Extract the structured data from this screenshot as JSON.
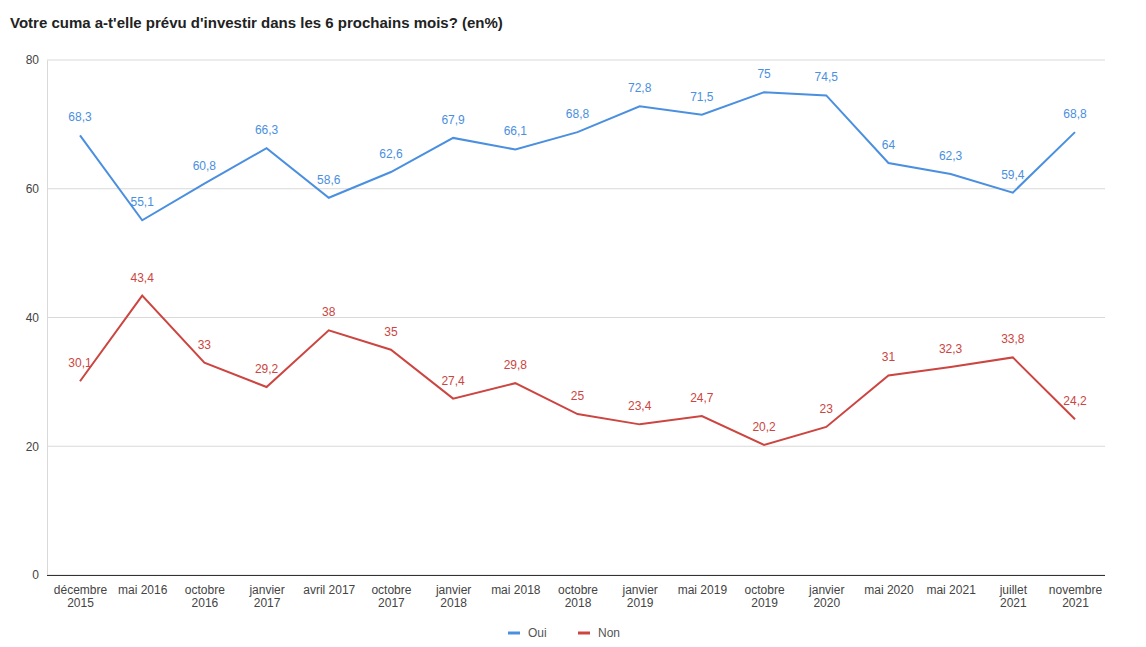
{
  "chart_data": {
    "type": "line",
    "title": "Votre cuma a-t'elle prévu d'investir dans les 6 prochains mois? (en%)",
    "categories": [
      "décembre 2015",
      "mai 2016",
      "octobre 2016",
      "janvier 2017",
      "avril 2017",
      "octobre 2017",
      "janvier 2018",
      "mai 2018",
      "octobre 2018",
      "janvier 2019",
      "mai 2019",
      "octobre 2019",
      "janvier 2020",
      "mai 2020",
      "mai 2021",
      "juillet 2021",
      "novembre 2021"
    ],
    "series": [
      {
        "name": "Oui",
        "color": "#4a8fe0",
        "values": [
          68.3,
          55.1,
          60.8,
          66.3,
          58.6,
          62.6,
          67.9,
          66.1,
          68.8,
          72.8,
          71.5,
          75,
          74.5,
          64,
          62.3,
          59.4,
          68.8
        ],
        "value_labels": [
          "68,3",
          "55,1",
          "60,8",
          "66,3",
          "58,6",
          "62,6",
          "67,9",
          "66,1",
          "68,8",
          "72,8",
          "71,5",
          "75",
          "74,5",
          "64",
          "62,3",
          "59,4",
          "68,8"
        ]
      },
      {
        "name": "Non",
        "color": "#cc4541",
        "values": [
          30.1,
          43.4,
          33,
          29.2,
          38,
          35,
          27.4,
          29.8,
          25,
          23.4,
          24.7,
          20.2,
          23,
          31,
          32.3,
          33.8,
          24.2
        ],
        "value_labels": [
          "30,1",
          "43,4",
          "33",
          "29,2",
          "38",
          "35",
          "27,4",
          "29,8",
          "25",
          "23,4",
          "24,7",
          "20,2",
          "23",
          "31",
          "32,3",
          "33,8",
          "24,2"
        ]
      }
    ],
    "ylim": [
      0,
      80
    ],
    "yticks": [
      0,
      20,
      40,
      60,
      80
    ],
    "grid": true,
    "legend": "bottom",
    "data_labels": true
  }
}
